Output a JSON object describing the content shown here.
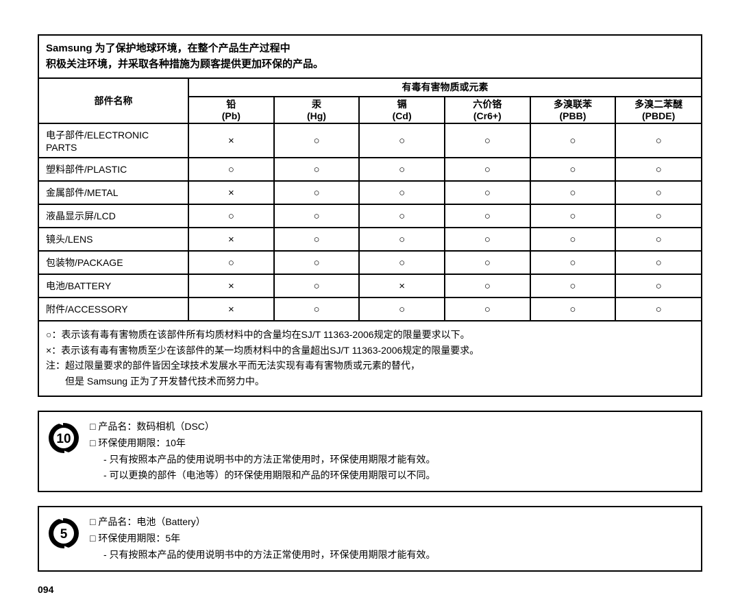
{
  "intro": {
    "line1": "Samsung 为了保护地球环境，在整个产品生产过程中",
    "line2": "积极关注环境，并采取各种措施为顾客提供更加环保的产品。"
  },
  "table": {
    "part_header": "部件名称",
    "substances_header": "有毒有害物质或元素",
    "columns": [
      {
        "cn": "铅",
        "sym": "(Pb)"
      },
      {
        "cn": "汞",
        "sym": "(Hg)"
      },
      {
        "cn": "镉",
        "sym": "(Cd)"
      },
      {
        "cn": "六价铬",
        "sym": "(Cr6+)"
      },
      {
        "cn": "多溴联苯",
        "sym": "(PBB)"
      },
      {
        "cn": "多溴二苯醚",
        "sym": "(PBDE)"
      }
    ],
    "rows": [
      {
        "name": "电子部件/ELECTRONIC PARTS",
        "vals": [
          "×",
          "○",
          "○",
          "○",
          "○",
          "○"
        ]
      },
      {
        "name": "塑料部件/PLASTIC",
        "vals": [
          "○",
          "○",
          "○",
          "○",
          "○",
          "○"
        ]
      },
      {
        "name": "金属部件/METAL",
        "vals": [
          "×",
          "○",
          "○",
          "○",
          "○",
          "○"
        ]
      },
      {
        "name": "液晶显示屏/LCD",
        "vals": [
          "○",
          "○",
          "○",
          "○",
          "○",
          "○"
        ]
      },
      {
        "name": "镜头/LENS",
        "vals": [
          "×",
          "○",
          "○",
          "○",
          "○",
          "○"
        ]
      },
      {
        "name": "包装物/PACKAGE",
        "vals": [
          "○",
          "○",
          "○",
          "○",
          "○",
          "○"
        ]
      },
      {
        "name": "电池/BATTERY",
        "vals": [
          "×",
          "○",
          "×",
          "○",
          "○",
          "○"
        ]
      },
      {
        "name": "附件/ACCESSORY",
        "vals": [
          "×",
          "○",
          "○",
          "○",
          "○",
          "○"
        ]
      }
    ],
    "footnotes": {
      "l1": "○：表示该有毒有害物质在该部件所有均质材料中的含量均在SJ/T 11363-2006规定的限量要求以下。",
      "l2": "×：表示该有毒有害物质至少在该部件的某一均质材料中的含量超出SJ/T 11363-2006规定的限量要求。",
      "l3": "注：超过限量要求的部件皆因全球技术发展水平而无法实现有毒有害物质或元素的替代，",
      "l4": "但是 Samsung 正为了开发替代技术而努力中。"
    }
  },
  "block10": {
    "badge_number": "10",
    "l1": "□ 产品名：数码相机（DSC）",
    "l2": "□ 环保使用期限：10年",
    "l3": "- 只有按照本产品的使用说明书中的方法正常使用时，环保使用期限才能有效。",
    "l4": "- 可以更换的部件（电池等）的环保使用期限和产品的环保使用期限可以不同。"
  },
  "block5": {
    "badge_number": "5",
    "l1": "□ 产品名：电池（Battery）",
    "l2": "□ 环保使用期限：5年",
    "l3": "- 只有按照本产品的使用说明书中的方法正常使用时，环保使用期限才能有效。"
  },
  "page_number": "094"
}
